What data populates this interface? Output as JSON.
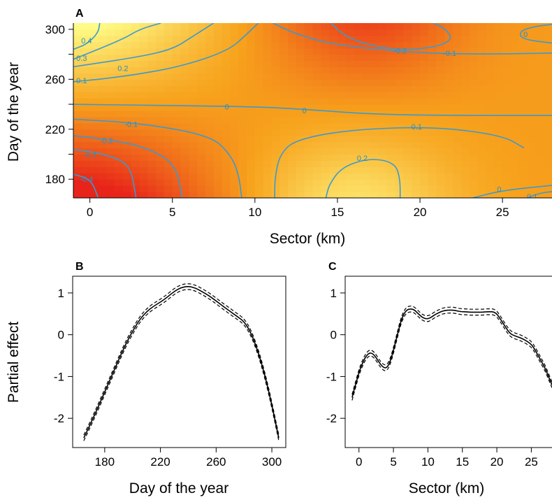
{
  "colors": {
    "contour": "#3a9ad0",
    "heat_low": "#e8241a",
    "heat_mid": "#f7a21c",
    "heat_high": "#ffff8a",
    "curve": "#000000",
    "axis": "#000000"
  },
  "chart_data": [
    {
      "panel": "A",
      "type": "heatmap",
      "title": "",
      "xlabel": "Sector (km)",
      "ylabel": "Day of the year",
      "xlim": [
        -1,
        28
      ],
      "ylim": [
        165,
        305
      ],
      "xticks": [
        0,
        5,
        10,
        15,
        20,
        25
      ],
      "yticks": [
        180,
        220,
        260,
        300
      ],
      "colorscale": "red (low) → orange → yellow (high)",
      "contours": [
        {
          "level": "0.4",
          "points": [
            [
              0.6,
              305
            ],
            [
              0.5,
              297
            ],
            [
              -0.2,
              288
            ],
            [
              -1,
              284
            ]
          ]
        },
        {
          "level": "0.3",
          "points": [
            [
              4.3,
              305
            ],
            [
              3.0,
              300
            ],
            [
              2.0,
              292
            ],
            [
              -1,
              276
            ]
          ]
        },
        {
          "level": "0.2",
          "points": [
            [
              7.5,
              305
            ],
            [
              6.2,
              294
            ],
            [
              5.0,
              284
            ],
            [
              3.0,
              278
            ],
            [
              0,
              272
            ],
            [
              -1,
              270
            ]
          ]
        },
        {
          "level": "0.1",
          "points": [
            [
              10.2,
              305
            ],
            [
              9.5,
              296
            ],
            [
              8.4,
              283
            ],
            [
              5.5,
              270
            ],
            [
              2.0,
              262
            ],
            [
              -1,
              258
            ]
          ]
        },
        {
          "level": "0",
          "points": [
            [
              -1,
              240
            ],
            [
              5,
              239
            ],
            [
              10,
              238
            ],
            [
              13,
              236
            ],
            [
              17,
              232
            ],
            [
              22,
              231
            ],
            [
              28,
              231
            ]
          ]
        },
        {
          "level": "-0.1",
          "points": [
            [
              -1,
              228
            ],
            [
              3,
              225
            ],
            [
              7.3,
              215
            ],
            [
              8.5,
              200
            ],
            [
              9.0,
              185
            ],
            [
              9.2,
              165
            ]
          ]
        },
        {
          "level": "-0.2",
          "points": [
            [
              -1,
              215
            ],
            [
              1.5,
              211
            ],
            [
              3.5,
              205
            ],
            [
              5.2,
              192
            ],
            [
              5.6,
              165
            ]
          ]
        },
        {
          "level": "-0.3",
          "points": [
            [
              -1,
              204
            ],
            [
              0.5,
              201
            ],
            [
              1.8,
              196
            ],
            [
              2.5,
              188
            ],
            [
              2.8,
              165
            ]
          ]
        },
        {
          "level": "-0.4",
          "points": [
            [
              -1,
              184
            ],
            [
              -0.2,
              181
            ],
            [
              0.2,
              176
            ],
            [
              0.5,
              165
            ]
          ]
        },
        {
          "level": "0",
          "points": [
            [
              28,
              304
            ],
            [
              26.8,
              302
            ],
            [
              26.0,
              298
            ],
            [
              26.2,
              292
            ],
            [
              28,
              289
            ]
          ]
        },
        {
          "level": "-0.1",
          "points": [
            [
              11.1,
              305
            ],
            [
              12.5,
              296
            ],
            [
              15,
              287
            ],
            [
              20,
              281
            ],
            [
              24,
              280
            ],
            [
              28,
              281
            ]
          ]
        },
        {
          "level": "-0.2",
          "points": [
            [
              14.6,
              305
            ],
            [
              15.5,
              294
            ],
            [
              17,
              287
            ],
            [
              19,
              283
            ],
            [
              21,
              286
            ],
            [
              22,
              292
            ],
            [
              21.5,
              301
            ],
            [
              20.8,
              305
            ]
          ]
        },
        {
          "level": "0.1",
          "points": [
            [
              11.2,
              165
            ],
            [
              11.2,
              180
            ],
            [
              11.5,
              200
            ],
            [
              12.5,
              212
            ],
            [
              16,
              220
            ],
            [
              21,
              222
            ],
            [
              25,
              215
            ],
            [
              26.3,
              205
            ]
          ]
        },
        {
          "level": "0.2",
          "points": [
            [
              14.3,
              165
            ],
            [
              14.5,
              176
            ],
            [
              15.3,
              190
            ],
            [
              17.0,
              197
            ],
            [
              18.5,
              193
            ],
            [
              18.8,
              180
            ],
            [
              18.8,
              165
            ]
          ]
        },
        {
          "level": "0",
          "points": [
            [
              23.2,
              165
            ],
            [
              25,
              171
            ],
            [
              28,
              175
            ]
          ]
        },
        {
          "level": "-0.1",
          "points": [
            [
              26.5,
              165
            ],
            [
              27.3,
              169
            ],
            [
              28,
              170
            ]
          ]
        }
      ],
      "contour_labels": [
        {
          "text": "0.4",
          "x": -0.2,
          "y": 291
        },
        {
          "text": "0.3",
          "x": -0.5,
          "y": 277
        },
        {
          "text": "0.2",
          "x": 2.0,
          "y": 269
        },
        {
          "text": "0.1",
          "x": -0.5,
          "y": 259
        },
        {
          "text": "0",
          "x": 8.3,
          "y": 238
        },
        {
          "text": "0",
          "x": 13.0,
          "y": 235
        },
        {
          "text": "-0.1",
          "x": 2.5,
          "y": 224
        },
        {
          "text": "-0.2",
          "x": 1.0,
          "y": 211
        },
        {
          "text": "-0.3",
          "x": 0.0,
          "y": 200
        },
        {
          "text": "-0.4",
          "x": -0.2,
          "y": 180
        },
        {
          "text": "0",
          "x": 26.4,
          "y": 296
        },
        {
          "text": "-0.2",
          "x": 18.8,
          "y": 283
        },
        {
          "text": "-0.1",
          "x": 21.8,
          "y": 281
        },
        {
          "text": "0.1",
          "x": 19.8,
          "y": 222
        },
        {
          "text": "0.2",
          "x": 16.5,
          "y": 197
        },
        {
          "text": "0",
          "x": 24.8,
          "y": 172
        },
        {
          "text": "0.1",
          "x": 26.8,
          "y": 166
        }
      ]
    },
    {
      "panel": "B",
      "type": "line",
      "title": "",
      "xlabel": "Day of the year",
      "ylabel": "Partial effect",
      "xlim": [
        157,
        310
      ],
      "ylim": [
        -2.7,
        1.4
      ],
      "xticks": [
        180,
        220,
        260,
        300
      ],
      "yticks": [
        -2,
        -1,
        0,
        1
      ],
      "series": [
        {
          "x": [
            165,
            170,
            175,
            180,
            185,
            190,
            195,
            200,
            205,
            210,
            215,
            220,
            225,
            230,
            235,
            240,
            245,
            250,
            255,
            260,
            265,
            270,
            275,
            280,
            285,
            290,
            295,
            300,
            305
          ],
          "y": [
            -2.47,
            -2.12,
            -1.75,
            -1.37,
            -0.99,
            -0.6,
            -0.23,
            0.08,
            0.36,
            0.55,
            0.68,
            0.78,
            0.9,
            1.04,
            1.13,
            1.16,
            1.12,
            1.03,
            0.93,
            0.81,
            0.68,
            0.56,
            0.44,
            0.32,
            0.05,
            -0.39,
            -0.97,
            -1.68,
            -2.47
          ],
          "band": 0.07
        }
      ]
    },
    {
      "panel": "C",
      "type": "line",
      "title": "",
      "xlabel": "Sector (km)",
      "ylabel": "",
      "xlim": [
        -2,
        28
      ],
      "ylim": [
        -2.7,
        1.4
      ],
      "xticks": [
        0,
        5,
        10,
        15,
        20,
        25
      ],
      "yticks": [
        -2,
        -1,
        0,
        1
      ],
      "series": [
        {
          "x": [
            -1,
            -0.5,
            0,
            0.5,
            1,
            1.5,
            2,
            2.5,
            3,
            3.5,
            4,
            4.5,
            5,
            5.5,
            6,
            6.5,
            7,
            7.5,
            8,
            8.5,
            9,
            9.5,
            10,
            10.5,
            11,
            11.5,
            12,
            12.5,
            13,
            13.5,
            14,
            14.5,
            15,
            15.5,
            16,
            16.5,
            17,
            17.5,
            18,
            18.5,
            19,
            19.5,
            20,
            20.5,
            21,
            21.5,
            22,
            22.5,
            23,
            23.5,
            24,
            24.5,
            25,
            25.5,
            26,
            26.5,
            27,
            27.5,
            28
          ],
          "y": [
            -1.5,
            -1.2,
            -0.9,
            -0.68,
            -0.52,
            -0.43,
            -0.45,
            -0.55,
            -0.68,
            -0.78,
            -0.8,
            -0.66,
            -0.38,
            -0.05,
            0.28,
            0.5,
            0.6,
            0.62,
            0.6,
            0.52,
            0.44,
            0.39,
            0.38,
            0.42,
            0.48,
            0.52,
            0.56,
            0.58,
            0.59,
            0.59,
            0.58,
            0.56,
            0.55,
            0.55,
            0.54,
            0.54,
            0.54,
            0.54,
            0.54,
            0.55,
            0.55,
            0.55,
            0.5,
            0.38,
            0.25,
            0.12,
            0.02,
            -0.02,
            -0.05,
            -0.08,
            -0.12,
            -0.17,
            -0.23,
            -0.35,
            -0.5,
            -0.65,
            -0.8,
            -1.0,
            -1.2
          ],
          "band": 0.07
        }
      ]
    }
  ]
}
